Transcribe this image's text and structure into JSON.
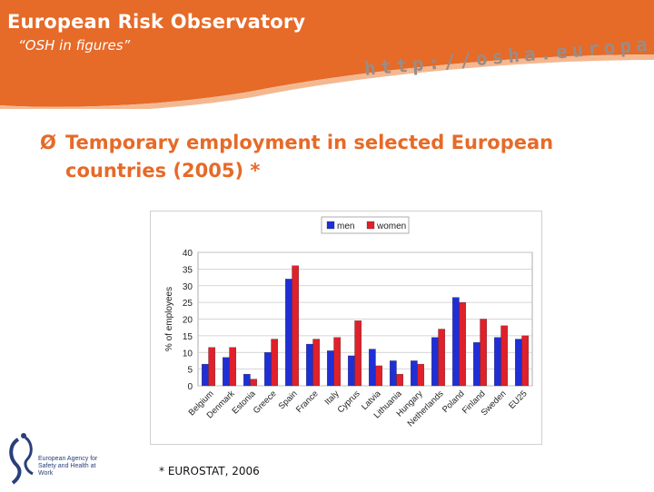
{
  "header": {
    "title": "European Risk Observatory",
    "subtitle": "“OSH in figures”",
    "url": "http://osha.europa.eu"
  },
  "heading": {
    "bullet": "Ø",
    "text": "Temporary employment in selected European countries (2005) *"
  },
  "footer": {
    "source": "* EUROSTAT, 2006",
    "logo_text": "European Agency for Safety and Health at Work"
  },
  "colors": {
    "header_orange": "#e66a28",
    "men": "#1f2fd6",
    "women": "#e0202a"
  },
  "chart_data": {
    "type": "bar",
    "categories": [
      "Belgium",
      "Denmark",
      "Estonia",
      "Greece",
      "Spain",
      "France",
      "Italy",
      "Cyprus",
      "Latvia",
      "Lithuania",
      "Hungary",
      "Netherlands",
      "Poland",
      "Finland",
      "Sweden",
      "EU25"
    ],
    "series": [
      {
        "name": "men",
        "values": [
          6.5,
          8.5,
          3.5,
          10,
          32,
          12.5,
          10.5,
          9,
          11,
          7.5,
          7.5,
          14.5,
          26.5,
          13,
          14.5,
          14
        ]
      },
      {
        "name": "women",
        "values": [
          11.5,
          11.5,
          2,
          14,
          36,
          14,
          14.5,
          19.5,
          6,
          3.5,
          6.5,
          17,
          25,
          20,
          18,
          15
        ]
      }
    ],
    "ylabel": "% of employees",
    "ylim": [
      0,
      40
    ],
    "yticks": [
      0,
      5,
      10,
      15,
      20,
      25,
      30,
      35,
      40
    ],
    "grid": true,
    "legend": "top"
  }
}
